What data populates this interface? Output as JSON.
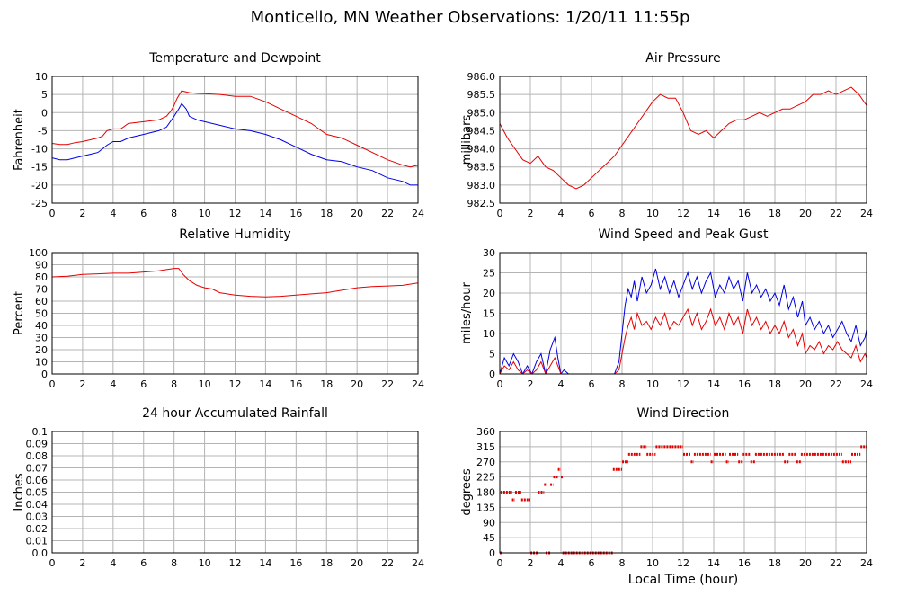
{
  "page_title": "Monticello, MN Weather Observations: 1/20/11 11:55p",
  "x_axis_label": "Local Time (hour)",
  "colors": {
    "series_red": "#e60000",
    "series_blue": "#0000e6",
    "grid": "#b4b4b4",
    "frame": "#000000"
  },
  "chart_data": [
    {
      "type": "line",
      "title": "Temperature and Dewpoint",
      "ylabel": "Fahrenheit",
      "xlim": [
        0,
        24
      ],
      "ylim": [
        -25,
        10
      ],
      "xticks": [
        "0",
        "2",
        "4",
        "6",
        "8",
        "10",
        "12",
        "14",
        "16",
        "18",
        "20",
        "22",
        "24"
      ],
      "yticks": [
        "-25",
        "-20",
        "-15",
        "-10",
        "-5",
        "0",
        "5",
        "10"
      ],
      "grid": true,
      "series": [
        {
          "color": "#e60000",
          "x": [
            0,
            0.5,
            1,
            1.5,
            2,
            2.5,
            3,
            3.3,
            3.6,
            4,
            4.5,
            5,
            6,
            7,
            7.5,
            7.8,
            8,
            8.2,
            8.5,
            9,
            9.5,
            10,
            11,
            12,
            13,
            14,
            15,
            16,
            17,
            18,
            19,
            20,
            21,
            22,
            23,
            23.5,
            24
          ],
          "values": [
            -8.5,
            -8.8,
            -8.8,
            -8.3,
            -8,
            -7.5,
            -7,
            -6.5,
            -5,
            -4.5,
            -4.5,
            -3,
            -2.5,
            -2,
            -1,
            0.5,
            2,
            4,
            6,
            5.5,
            5.3,
            5.2,
            5,
            4.5,
            4.5,
            3,
            1,
            -1,
            -3,
            -6,
            -7,
            -9,
            -11,
            -13,
            -14.5,
            -15,
            -14.5
          ]
        },
        {
          "color": "#0000e6",
          "x": [
            0,
            0.5,
            1,
            1.5,
            2,
            2.5,
            3,
            3.3,
            3.6,
            4,
            4.5,
            5,
            6,
            7,
            7.5,
            8,
            8.3,
            8.5,
            8.8,
            9,
            9.5,
            10,
            11,
            12,
            13,
            14,
            15,
            16,
            17,
            18,
            19,
            20,
            21,
            22,
            23,
            23.5,
            24
          ],
          "values": [
            -12.5,
            -13,
            -13,
            -12.5,
            -12,
            -11.5,
            -11,
            -10,
            -9,
            -8,
            -8,
            -7,
            -6,
            -5,
            -4,
            -1,
            1,
            2.5,
            1,
            -1,
            -2,
            -2.5,
            -3.5,
            -4.5,
            -5,
            -6,
            -7.5,
            -9.5,
            -11.5,
            -13,
            -13.5,
            -15,
            -16,
            -18,
            -19,
            -20,
            -20
          ]
        }
      ]
    },
    {
      "type": "line",
      "title": "Air Pressure",
      "ylabel": "millibars",
      "xlim": [
        0,
        24
      ],
      "ylim": [
        982.5,
        986.0
      ],
      "xticks": [
        "0",
        "2",
        "4",
        "6",
        "8",
        "10",
        "12",
        "14",
        "16",
        "18",
        "20",
        "22",
        "24"
      ],
      "yticks": [
        "982.5",
        "983.0",
        "983.5",
        "984.0",
        "984.5",
        "985.0",
        "985.5",
        "986.0"
      ],
      "grid": true,
      "series": [
        {
          "color": "#e60000",
          "x": [
            0,
            0.5,
            1,
            1.5,
            2,
            2.5,
            3,
            3.5,
            4,
            4.5,
            5,
            5.5,
            6,
            6.5,
            7,
            7.5,
            8,
            8.5,
            9,
            9.5,
            10,
            10.5,
            11,
            11.5,
            12,
            12.5,
            13,
            13.5,
            14,
            14.5,
            15,
            15.5,
            16,
            16.5,
            17,
            17.5,
            18,
            18.5,
            19,
            19.5,
            20,
            20.5,
            21,
            21.5,
            22,
            22.5,
            23,
            23.5,
            24
          ],
          "values": [
            984.7,
            984.3,
            984.0,
            983.7,
            983.6,
            983.8,
            983.5,
            983.4,
            983.2,
            983.0,
            982.9,
            983.0,
            983.2,
            983.4,
            983.6,
            983.8,
            984.1,
            984.4,
            984.7,
            985.0,
            985.3,
            985.5,
            985.4,
            985.4,
            985.0,
            984.5,
            984.4,
            984.5,
            984.3,
            984.5,
            984.7,
            984.8,
            984.8,
            984.9,
            985.0,
            984.9,
            985.0,
            985.1,
            985.1,
            985.2,
            985.3,
            985.5,
            985.5,
            985.6,
            985.5,
            985.6,
            985.7,
            985.5,
            985.2
          ]
        }
      ]
    },
    {
      "type": "line",
      "title": "Relative Humidity",
      "ylabel": "Percent",
      "xlim": [
        0,
        24
      ],
      "ylim": [
        0,
        100
      ],
      "xticks": [
        "0",
        "2",
        "4",
        "6",
        "8",
        "10",
        "12",
        "14",
        "16",
        "18",
        "20",
        "22",
        "24"
      ],
      "yticks": [
        "0",
        "10",
        "20",
        "30",
        "40",
        "50",
        "60",
        "70",
        "80",
        "90",
        "100"
      ],
      "grid": true,
      "series": [
        {
          "color": "#e60000",
          "x": [
            0,
            1,
            2,
            3,
            4,
            5,
            6,
            7,
            7.5,
            8,
            8.3,
            8.6,
            9,
            9.5,
            10,
            10.5,
            11,
            12,
            13,
            14,
            15,
            16,
            17,
            18,
            19,
            20,
            21,
            22,
            23,
            24
          ],
          "values": [
            80,
            80.5,
            82,
            82.5,
            83,
            83,
            84,
            85,
            86,
            87,
            87,
            82,
            77,
            73,
            71,
            70,
            67,
            65,
            64,
            63.5,
            64,
            65,
            66,
            67,
            69,
            71,
            72,
            72.5,
            73,
            75
          ]
        }
      ]
    },
    {
      "type": "line",
      "title": "Wind Speed and Peak Gust",
      "ylabel": "miles/hour",
      "xlim": [
        0,
        24
      ],
      "ylim": [
        0,
        30
      ],
      "xticks": [
        "0",
        "2",
        "4",
        "6",
        "8",
        "10",
        "12",
        "14",
        "16",
        "18",
        "20",
        "22",
        "24"
      ],
      "yticks": [
        "0",
        "5",
        "10",
        "15",
        "20",
        "25",
        "30"
      ],
      "grid": true,
      "series": [
        {
          "color": "#0000e6",
          "x": [
            0,
            0.3,
            0.6,
            0.9,
            1.2,
            1.5,
            1.8,
            2.1,
            2.4,
            2.7,
            3,
            3.3,
            3.6,
            3.8,
            4,
            4.2,
            4.5,
            6,
            7.5,
            7.8,
            8,
            8.2,
            8.4,
            8.6,
            8.8,
            9,
            9.3,
            9.6,
            9.9,
            10.2,
            10.5,
            10.8,
            11.1,
            11.4,
            11.7,
            12,
            12.3,
            12.6,
            12.9,
            13.2,
            13.5,
            13.8,
            14.1,
            14.4,
            14.7,
            15,
            15.3,
            15.6,
            15.9,
            16.2,
            16.5,
            16.8,
            17.1,
            17.4,
            17.7,
            18,
            18.3,
            18.6,
            18.9,
            19.2,
            19.5,
            19.8,
            20,
            20.3,
            20.6,
            20.9,
            21.2,
            21.5,
            21.8,
            22.1,
            22.4,
            22.7,
            23,
            23.3,
            23.6,
            23.9,
            24
          ],
          "values": [
            0,
            4,
            2,
            5,
            3,
            0,
            2,
            0,
            3,
            5,
            0,
            6,
            9,
            4,
            0,
            1,
            0,
            0,
            0,
            3,
            10,
            17,
            21,
            19,
            23,
            18,
            24,
            20,
            22,
            26,
            21,
            24,
            20,
            23,
            19,
            22,
            25,
            21,
            24,
            20,
            23,
            25,
            19,
            22,
            20,
            24,
            21,
            23,
            18,
            25,
            20,
            22,
            19,
            21,
            18,
            20,
            17,
            22,
            16,
            19,
            14,
            18,
            12,
            14,
            11,
            13,
            10,
            12,
            9,
            11,
            13,
            10,
            8,
            12,
            7,
            9,
            11
          ]
        },
        {
          "color": "#e60000",
          "x": [
            0,
            0.3,
            0.6,
            0.9,
            1.2,
            1.5,
            1.8,
            2.1,
            2.4,
            2.7,
            3,
            3.3,
            3.6,
            3.8,
            4,
            4.2,
            4.5,
            6,
            7.5,
            7.8,
            8,
            8.2,
            8.4,
            8.6,
            8.8,
            9,
            9.3,
            9.6,
            9.9,
            10.2,
            10.5,
            10.8,
            11.1,
            11.4,
            11.7,
            12,
            12.3,
            12.6,
            12.9,
            13.2,
            13.5,
            13.8,
            14.1,
            14.4,
            14.7,
            15,
            15.3,
            15.6,
            15.9,
            16.2,
            16.5,
            16.8,
            17.1,
            17.4,
            17.7,
            18,
            18.3,
            18.6,
            18.9,
            19.2,
            19.5,
            19.8,
            20,
            20.3,
            20.6,
            20.9,
            21.2,
            21.5,
            21.8,
            22.1,
            22.4,
            22.7,
            23,
            23.3,
            23.6,
            23.9,
            24
          ],
          "values": [
            0,
            2,
            1,
            3,
            1,
            0,
            1,
            0,
            1,
            3,
            0,
            2,
            4,
            2,
            0,
            0,
            0,
            0,
            0,
            1,
            5,
            9,
            12,
            14,
            11,
            15,
            12,
            13,
            11,
            14,
            12,
            15,
            11,
            13,
            12,
            14,
            16,
            12,
            15,
            11,
            13,
            16,
            12,
            14,
            11,
            15,
            12,
            14,
            10,
            16,
            12,
            14,
            11,
            13,
            10,
            12,
            10,
            13,
            9,
            11,
            7,
            10,
            5,
            7,
            6,
            8,
            5,
            7,
            6,
            8,
            6,
            5,
            4,
            7,
            3,
            5,
            4
          ]
        }
      ]
    },
    {
      "type": "line",
      "title": "24 hour Accumulated Rainfall",
      "ylabel": "Inches",
      "xlim": [
        0,
        24
      ],
      "ylim": [
        0,
        0.1
      ],
      "xticks": [
        "0",
        "2",
        "4",
        "6",
        "8",
        "10",
        "12",
        "14",
        "16",
        "18",
        "20",
        "22",
        "24"
      ],
      "yticks": [
        "0.0",
        "0.01",
        "0.02",
        "0.03",
        "0.04",
        "0.05",
        "0.06",
        "0.07",
        "0.08",
        "0.09",
        "0.1"
      ],
      "grid": true,
      "series": [
        {
          "color": "#e60000",
          "x": [
            0,
            24
          ],
          "values": [
            0,
            0
          ]
        }
      ]
    },
    {
      "type": "scatter",
      "title": "Wind Direction",
      "ylabel": "degrees",
      "xlabel": "Local Time (hour)",
      "xlim": [
        0,
        24
      ],
      "ylim": [
        0,
        360
      ],
      "xticks": [
        "0",
        "2",
        "4",
        "6",
        "8",
        "10",
        "12",
        "14",
        "16",
        "18",
        "20",
        "22",
        "24"
      ],
      "yticks": [
        "0",
        "45",
        "90",
        "135",
        "180",
        "225",
        "270",
        "315",
        "360"
      ],
      "grid": true,
      "segments": [
        {
          "x_start": 0,
          "x_end": 0.05,
          "value": 0
        },
        {
          "x_start": 0.05,
          "x_end": 0.8,
          "value": 180
        },
        {
          "x_start": 0.8,
          "x_end": 1.0,
          "value": 157.5
        },
        {
          "x_start": 1.0,
          "x_end": 1.4,
          "value": 180
        },
        {
          "x_start": 1.4,
          "x_end": 2.0,
          "value": 157.5
        },
        {
          "x_start": 2.0,
          "x_end": 2.5,
          "value": 0
        },
        {
          "x_start": 2.5,
          "x_end": 2.9,
          "value": 180
        },
        {
          "x_start": 2.9,
          "x_end": 3.0,
          "value": 202.5
        },
        {
          "x_start": 3.0,
          "x_end": 3.3,
          "value": 0
        },
        {
          "x_start": 3.3,
          "x_end": 3.5,
          "value": 202.5
        },
        {
          "x_start": 3.5,
          "x_end": 3.8,
          "value": 225
        },
        {
          "x_start": 3.8,
          "x_end": 4.0,
          "value": 247.5
        },
        {
          "x_start": 4.0,
          "x_end": 4.1,
          "value": 225
        },
        {
          "x_start": 4.1,
          "x_end": 7.4,
          "value": 0
        },
        {
          "x_start": 7.4,
          "x_end": 8.0,
          "value": 247.5
        },
        {
          "x_start": 8.0,
          "x_end": 8.4,
          "value": 270
        },
        {
          "x_start": 8.4,
          "x_end": 9.2,
          "value": 292.5
        },
        {
          "x_start": 9.2,
          "x_end": 9.6,
          "value": 315
        },
        {
          "x_start": 9.6,
          "x_end": 10.2,
          "value": 292.5
        },
        {
          "x_start": 10.2,
          "x_end": 12.0,
          "value": 315
        },
        {
          "x_start": 12.0,
          "x_end": 12.5,
          "value": 292.5
        },
        {
          "x_start": 12.5,
          "x_end": 12.7,
          "value": 270
        },
        {
          "x_start": 12.7,
          "x_end": 13.8,
          "value": 292.5
        },
        {
          "x_start": 13.8,
          "x_end": 14.0,
          "value": 270
        },
        {
          "x_start": 14.0,
          "x_end": 14.8,
          "value": 292.5
        },
        {
          "x_start": 14.8,
          "x_end": 15.0,
          "value": 270
        },
        {
          "x_start": 15.0,
          "x_end": 15.6,
          "value": 292.5
        },
        {
          "x_start": 15.6,
          "x_end": 15.9,
          "value": 270
        },
        {
          "x_start": 15.9,
          "x_end": 16.4,
          "value": 292.5
        },
        {
          "x_start": 16.4,
          "x_end": 16.7,
          "value": 270
        },
        {
          "x_start": 16.7,
          "x_end": 18.6,
          "value": 292.5
        },
        {
          "x_start": 18.6,
          "x_end": 18.9,
          "value": 270
        },
        {
          "x_start": 18.9,
          "x_end": 19.4,
          "value": 292.5
        },
        {
          "x_start": 19.4,
          "x_end": 19.7,
          "value": 270
        },
        {
          "x_start": 19.7,
          "x_end": 22.4,
          "value": 292.5
        },
        {
          "x_start": 22.4,
          "x_end": 23.0,
          "value": 270
        },
        {
          "x_start": 23.0,
          "x_end": 23.6,
          "value": 292.5
        },
        {
          "x_start": 23.6,
          "x_end": 24.0,
          "value": 315
        }
      ]
    }
  ]
}
